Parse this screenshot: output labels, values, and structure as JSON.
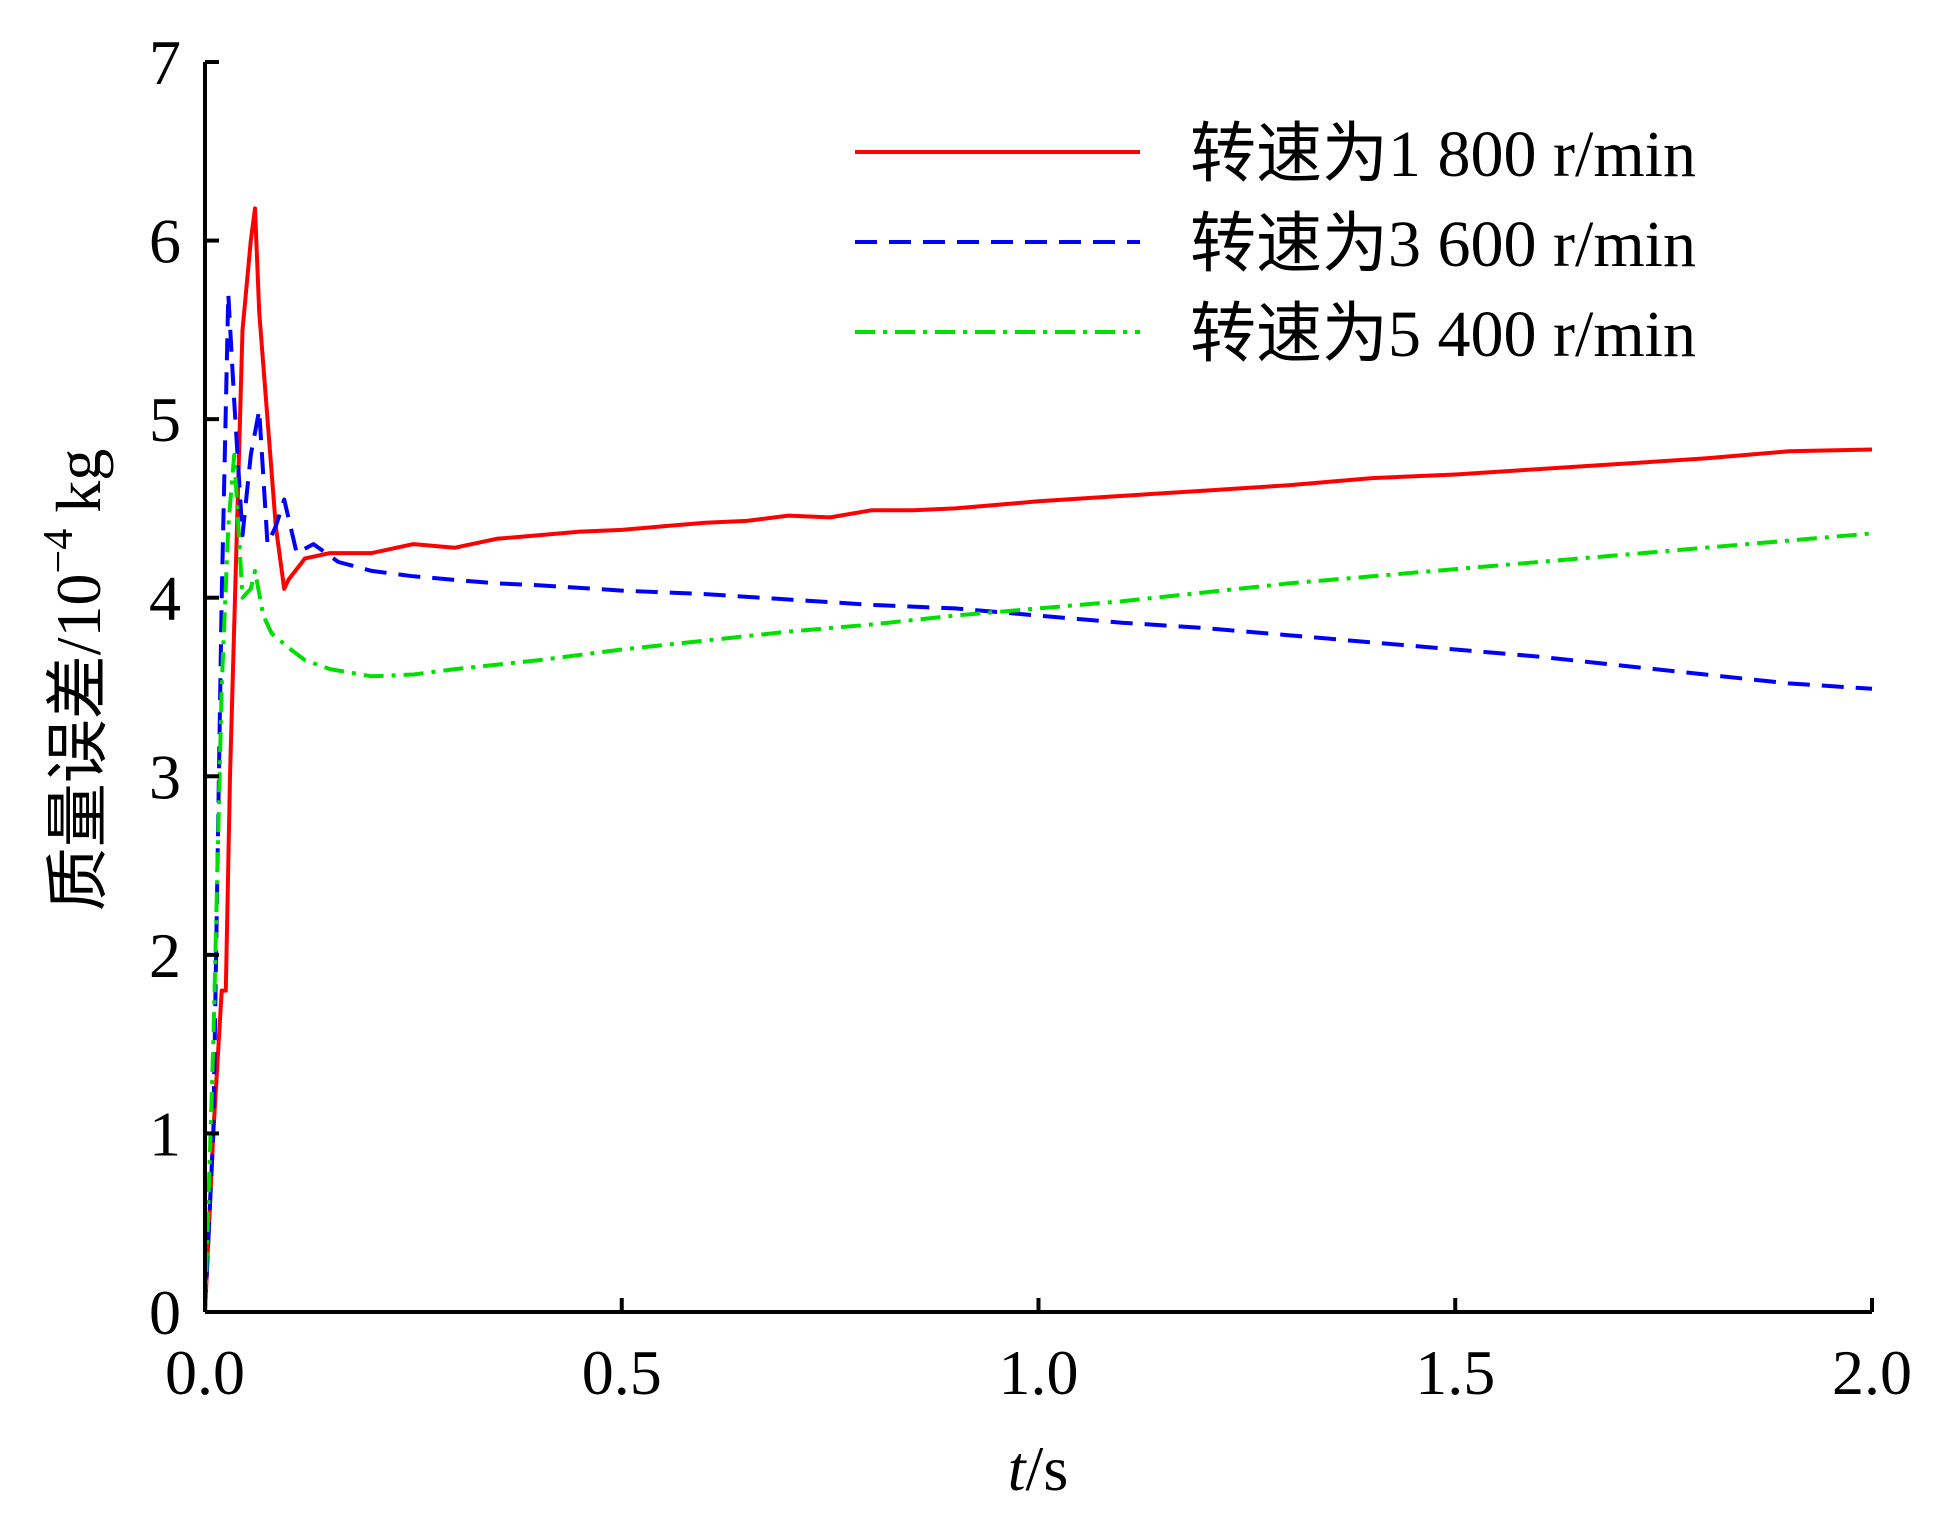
{
  "chart_data": {
    "type": "line",
    "title": "",
    "xlabel_italic": "t",
    "xlabel_rest": "/s",
    "ylabel_main": "质量误差/10",
    "ylabel_sup": "−4",
    "ylabel_unit": " kg",
    "xlim": [
      0,
      2
    ],
    "ylim": [
      0,
      7
    ],
    "x_ticks": [
      0.0,
      0.5,
      1.0,
      1.5,
      2.0
    ],
    "x_tick_labels": [
      "0.0",
      "0.5",
      "1.0",
      "1.5",
      "2.0"
    ],
    "y_ticks": [
      0,
      1,
      2,
      3,
      4,
      5,
      6,
      7
    ],
    "y_tick_labels": [
      "0",
      "1",
      "2",
      "3",
      "4",
      "5",
      "6",
      "7"
    ],
    "grid": false,
    "legend_position": "top-right",
    "series": [
      {
        "name": "转速为1 800 r/min",
        "color": "#ff0000",
        "dash": "solid",
        "x": [
          0.0,
          0.01,
          0.02,
          0.025,
          0.03,
          0.045,
          0.055,
          0.06,
          0.065,
          0.075,
          0.085,
          0.095,
          0.1,
          0.12,
          0.15,
          0.2,
          0.25,
          0.3,
          0.35,
          0.4,
          0.45,
          0.5,
          0.55,
          0.6,
          0.65,
          0.7,
          0.75,
          0.8,
          0.85,
          0.9,
          0.95,
          1.0,
          1.1,
          1.2,
          1.3,
          1.4,
          1.5,
          1.6,
          1.7,
          1.8,
          1.9,
          2.0
        ],
        "y": [
          0.0,
          1.0,
          1.8,
          1.8,
          3.0,
          5.5,
          6.0,
          6.18,
          5.6,
          5.0,
          4.4,
          4.05,
          4.1,
          4.22,
          4.25,
          4.25,
          4.3,
          4.28,
          4.33,
          4.35,
          4.37,
          4.38,
          4.4,
          4.42,
          4.43,
          4.46,
          4.45,
          4.49,
          4.49,
          4.5,
          4.52,
          4.54,
          4.57,
          4.6,
          4.63,
          4.67,
          4.69,
          4.72,
          4.75,
          4.78,
          4.82,
          4.83
        ]
      },
      {
        "name": "转速为3 600 r/min",
        "color": "#0000ff",
        "dash": "dashed",
        "x": [
          0.0,
          0.01,
          0.02,
          0.028,
          0.035,
          0.045,
          0.055,
          0.065,
          0.075,
          0.085,
          0.095,
          0.11,
          0.13,
          0.16,
          0.2,
          0.25,
          0.3,
          0.35,
          0.4,
          0.5,
          0.6,
          0.7,
          0.8,
          0.9,
          1.0,
          1.1,
          1.2,
          1.3,
          1.4,
          1.5,
          1.6,
          1.7,
          1.8,
          1.9,
          2.0
        ],
        "y": [
          0.0,
          1.0,
          4.0,
          5.7,
          5.1,
          4.35,
          4.8,
          5.05,
          4.3,
          4.4,
          4.55,
          4.25,
          4.3,
          4.2,
          4.15,
          4.12,
          4.1,
          4.08,
          4.07,
          4.04,
          4.02,
          3.99,
          3.96,
          3.94,
          3.9,
          3.86,
          3.83,
          3.79,
          3.75,
          3.71,
          3.67,
          3.62,
          3.57,
          3.52,
          3.49
        ]
      },
      {
        "name": "转速为5 400 r/min",
        "color": "#00e000",
        "dash": "dashdot",
        "x": [
          0.0,
          0.01,
          0.02,
          0.028,
          0.035,
          0.045,
          0.055,
          0.06,
          0.07,
          0.08,
          0.1,
          0.12,
          0.15,
          0.2,
          0.25,
          0.3,
          0.4,
          0.5,
          0.6,
          0.7,
          0.8,
          0.9,
          1.0,
          1.1,
          1.2,
          1.3,
          1.4,
          1.5,
          1.6,
          1.7,
          1.8,
          1.9,
          2.0
        ],
        "y": [
          0.0,
          1.5,
          3.5,
          4.4,
          4.8,
          4.0,
          4.05,
          4.15,
          3.9,
          3.8,
          3.72,
          3.65,
          3.6,
          3.56,
          3.57,
          3.6,
          3.65,
          3.71,
          3.76,
          3.81,
          3.85,
          3.9,
          3.94,
          3.98,
          4.03,
          4.08,
          4.12,
          4.16,
          4.2,
          4.24,
          4.28,
          4.32,
          4.36
        ]
      }
    ]
  }
}
